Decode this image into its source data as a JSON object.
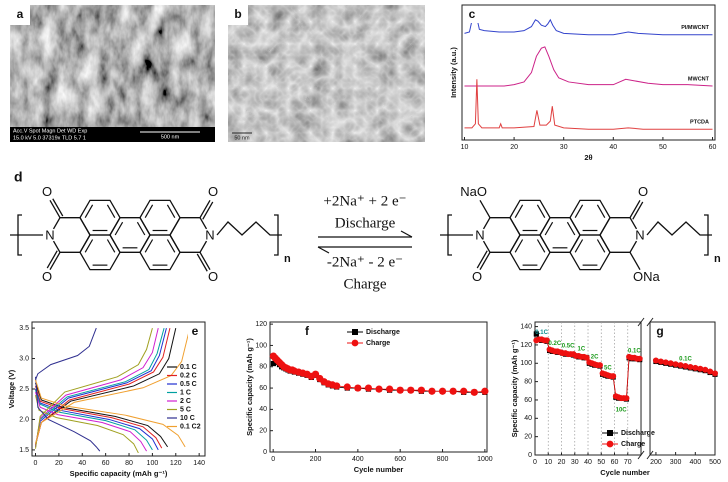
{
  "micrographs": [
    {
      "label": "a",
      "info": [
        "Acc.V  Spot Magn   Det  WD  Exp",
        "15.0 kV 5.0 37319x  TLD 5.7  1"
      ],
      "scale": "500 nm"
    },
    {
      "label": "b",
      "scale": "50 nm"
    }
  ],
  "scheme": {
    "label": "d",
    "left_atoms": [
      "O",
      "N",
      "O",
      "O",
      "N",
      "O"
    ],
    "right_atoms": [
      "NaO",
      "N",
      "O",
      "O",
      "N",
      "ONa"
    ],
    "repeat": "n",
    "forward": "+2Na⁺ + 2 e⁻",
    "forward_label": "Discharge",
    "reverse": "-2Na⁺ - 2 e⁻",
    "reverse_label": "Charge"
  },
  "chart_data": [
    {
      "type": "line",
      "label": "c",
      "xlabel": "2θ",
      "ylabel": "Intensity (a.u.)",
      "xlim": [
        9.5,
        60.5
      ],
      "xticks": [
        10,
        20,
        30,
        40,
        50,
        60
      ],
      "ylim": [
        0,
        100
      ],
      "series": [
        {
          "name": "PI/MWCNT",
          "color": "#3344cc",
          "x": [
            10,
            11,
            11.6,
            12,
            12.4,
            13,
            14,
            17,
            20,
            22,
            23.5,
            24.3,
            24.8,
            25.5,
            26.3,
            26.8,
            27.3,
            27.8,
            28.5,
            30,
            35,
            40,
            43,
            45,
            50,
            55,
            60
          ],
          "values": [
            79,
            80,
            90,
            98,
            92,
            82,
            81,
            80,
            80,
            81,
            84,
            89,
            88,
            85,
            84,
            86,
            89,
            85,
            81,
            79,
            78,
            78,
            80,
            79,
            78,
            78,
            78
          ]
        },
        {
          "name": "MWCNT",
          "color": "#cc2288",
          "x": [
            10,
            12,
            15,
            18,
            20,
            22,
            23.5,
            24.5,
            25.5,
            26.2,
            27,
            28,
            29,
            31,
            35,
            40,
            42.5,
            44,
            47,
            50,
            55,
            60
          ],
          "values": [
            40,
            40,
            40,
            40,
            41,
            43,
            50,
            62,
            68,
            69,
            62,
            52,
            46,
            43,
            41,
            41,
            45,
            44,
            42,
            41,
            41,
            40
          ]
        },
        {
          "name": "PTCDA",
          "color": "#e04040",
          "x": [
            10,
            11.5,
            12.2,
            12.5,
            12.8,
            13.5,
            17,
            17.3,
            17.6,
            20,
            24,
            24.6,
            25.2,
            26.5,
            27.3,
            27.7,
            28.2,
            30,
            35,
            40,
            43,
            46,
            50,
            55,
            60
          ],
          "values": [
            9,
            9,
            12,
            45,
            12,
            9,
            9,
            12,
            9,
            9,
            10,
            22,
            11,
            11,
            14,
            25,
            11,
            9,
            8,
            8,
            9,
            8,
            8,
            8,
            8
          ]
        }
      ]
    },
    {
      "type": "line",
      "label": "e",
      "xlabel": "Specific capacity (mAh g⁻¹)",
      "ylabel": "Voltage (V)",
      "xlim": [
        -3,
        145
      ],
      "xticks": [
        0,
        20,
        40,
        60,
        80,
        100,
        120,
        140
      ],
      "ylim": [
        1.4,
        3.6
      ],
      "yticks": [
        1.5,
        {
          "value": 2,
          "label": "2.0"
        },
        2.5,
        {
          "value": 3,
          "label": "3.0"
        },
        3.5
      ],
      "legend": "center right",
      "series": [
        {
          "name": "0.1 C",
          "color": "#111111",
          "discharge": {
            "x": [
              0,
              5,
              23,
              68,
              96,
              107,
              113
            ],
            "values": [
              2.6,
              2.32,
              2.2,
              2.05,
              1.9,
              1.72,
              1.55
            ]
          },
          "charge": {
            "x": [
              0,
              5,
              30,
              84,
              106,
              114,
              120
            ],
            "values": [
              1.6,
              1.95,
              2.3,
              2.55,
              2.75,
              3.0,
              3.5
            ]
          }
        },
        {
          "name": "0.2 C",
          "color": "#e02020",
          "discharge": {
            "x": [
              0,
              4,
              22,
              65,
              92,
              103,
              108
            ],
            "values": [
              2.55,
              2.3,
              2.18,
              2.03,
              1.88,
              1.7,
              1.53
            ]
          },
          "charge": {
            "x": [
              0,
              5,
              29,
              80,
              101,
              109,
              115
            ],
            "values": [
              1.58,
              1.95,
              2.32,
              2.58,
              2.78,
              3.02,
              3.5
            ]
          }
        },
        {
          "name": "0.5 C",
          "color": "#2030d0",
          "discharge": {
            "x": [
              0,
              4,
              21,
              63,
              89,
              100,
              105
            ],
            "values": [
              2.5,
              2.27,
              2.15,
              2.0,
              1.85,
              1.68,
              1.5
            ]
          },
          "charge": {
            "x": [
              0,
              4,
              28,
              78,
              99,
              106,
              112
            ],
            "values": [
              1.55,
              1.97,
              2.35,
              2.6,
              2.8,
              3.05,
              3.5
            ]
          }
        },
        {
          "name": "1 C",
          "color": "#00a0a0",
          "discharge": {
            "x": [
              0,
              4,
              20,
              60,
              85,
              95,
              100
            ],
            "values": [
              2.48,
              2.25,
              2.12,
              1.98,
              1.83,
              1.66,
              1.5
            ]
          },
          "charge": {
            "x": [
              0,
              4,
              27,
              77,
              97,
              104,
              110
            ],
            "values": [
              1.55,
              2.0,
              2.37,
              2.62,
              2.82,
              3.08,
              3.5
            ]
          }
        },
        {
          "name": "2 C",
          "color": "#d020d0",
          "discharge": {
            "x": [
              0,
              4,
              19,
              57,
              81,
              90,
              95
            ],
            "values": [
              2.45,
              2.2,
              2.08,
              1.95,
              1.8,
              1.64,
              1.48
            ]
          },
          "charge": {
            "x": [
              0,
              4,
              26,
              73,
              92,
              100,
              105
            ],
            "values": [
              1.55,
              2.02,
              2.4,
              2.65,
              2.85,
              3.1,
              3.5
            ]
          }
        },
        {
          "name": "5 C",
          "color": "#a0a020",
          "discharge": {
            "x": [
              0,
              3,
              18,
              53,
              75,
              84,
              88
            ],
            "values": [
              2.4,
              2.15,
              2.03,
              1.9,
              1.75,
              1.6,
              1.45
            ]
          },
          "charge": {
            "x": [
              0,
              4,
              25,
              70,
              88,
              95,
              100
            ],
            "values": [
              1.52,
              2.05,
              2.45,
              2.7,
              2.9,
              3.15,
              3.5
            ]
          }
        },
        {
          "name": "10 C",
          "color": "#303090",
          "discharge": {
            "x": [
              0,
              2,
              11,
              33,
              47,
              52,
              55
            ],
            "values": [
              2.7,
              2.2,
              2.0,
              1.8,
              1.65,
              1.55,
              1.48
            ]
          },
          "charge": {
            "x": [
              0,
              2,
              13,
              36,
              46,
              49,
              52
            ],
            "values": [
              2.65,
              2.75,
              2.9,
              3.05,
              3.2,
              3.35,
              3.5
            ]
          }
        },
        {
          "name": "0.1 C2",
          "color": "#f0a030",
          "discharge": {
            "x": [
              0,
              5,
              26,
              77,
              109,
              122,
              128
            ],
            "values": [
              2.65,
              2.35,
              2.22,
              2.07,
              1.92,
              1.74,
              1.55
            ]
          },
          "charge": {
            "x": [
              0,
              5,
              33,
              92,
              116,
              125,
              132
            ],
            "values": [
              1.6,
              1.95,
              2.28,
              2.52,
              2.72,
              2.95,
              3.5
            ]
          }
        }
      ]
    },
    {
      "type": "scatter",
      "label": "f",
      "xlabel": "Cycle number",
      "ylabel": "Specific capacity (mAh g⁻¹)",
      "xlim": [
        -15,
        1010
      ],
      "xticks": [
        0,
        200,
        400,
        600,
        800,
        1000
      ],
      "ylim": [
        0,
        122
      ],
      "yticks": [
        0,
        20,
        40,
        60,
        80,
        100,
        120
      ],
      "legend": "upper center",
      "x": [
        1,
        10,
        20,
        30,
        40,
        50,
        60,
        70,
        80,
        90,
        100,
        120,
        140,
        160,
        180,
        200,
        220,
        240,
        260,
        280,
        300,
        350,
        400,
        450,
        500,
        550,
        600,
        650,
        700,
        750,
        800,
        850,
        900,
        950,
        1000
      ],
      "series": [
        {
          "name": "Discharge",
          "color": "#000000",
          "marker": "square",
          "values": [
            83,
            85,
            84,
            82,
            80,
            79,
            78,
            77,
            76,
            76,
            75,
            74,
            73,
            72,
            70,
            72,
            68,
            65,
            63,
            62,
            61,
            60,
            60,
            59,
            59,
            58,
            58,
            58,
            57,
            57,
            57,
            57,
            56,
            56,
            56
          ]
        },
        {
          "name": "Charge",
          "color": "#ee1111",
          "marker": "circle",
          "values": [
            90,
            88,
            86,
            84,
            82,
            80,
            79,
            78,
            77,
            77,
            76,
            75,
            74,
            73,
            71,
            73,
            69,
            66,
            64,
            63,
            62,
            61,
            60,
            60,
            59,
            59,
            58,
            58,
            58,
            57,
            57,
            57,
            57,
            56,
            57
          ]
        }
      ]
    },
    {
      "type": "scatter",
      "label": "g",
      "xlabel": "Cycle number",
      "ylabel": "Specific capacity (mAh g⁻¹)",
      "xsegments": [
        [
          0,
          80
        ],
        [
          170,
          500
        ]
      ],
      "xgrid": true,
      "xticks": [
        0,
        10,
        20,
        30,
        40,
        50,
        60,
        70,
        200,
        300,
        400,
        500
      ],
      "ylim": [
        0,
        145
      ],
      "yticks": [
        0,
        20,
        40,
        60,
        80,
        100,
        120,
        140
      ],
      "legend": "lower right",
      "annotations": [
        "0.1C",
        "0.2C",
        "0.5C",
        "1C",
        "2C",
        "5C",
        "10C",
        "0.1C",
        "0.1C"
      ],
      "x": [
        1,
        3,
        5,
        7,
        9,
        11,
        13,
        15,
        17,
        19,
        21,
        23,
        25,
        27,
        29,
        31,
        33,
        35,
        37,
        39,
        41,
        43,
        45,
        47,
        49,
        51,
        53,
        55,
        57,
        59,
        61,
        63,
        65,
        67,
        69,
        71,
        73,
        75,
        77,
        79,
        200,
        225,
        250,
        275,
        300,
        325,
        350,
        375,
        400,
        425,
        450,
        475,
        500
      ],
      "series": [
        {
          "name": "Discharge",
          "color": "#000000",
          "marker": "square",
          "values": [
            132,
            126,
            125,
            125,
            124,
            114,
            113,
            113,
            112,
            112,
            111,
            110,
            110,
            110,
            109,
            108,
            107,
            107,
            106,
            106,
            100,
            99,
            98,
            98,
            97,
            88,
            87,
            86,
            86,
            85,
            63,
            62,
            62,
            62,
            61,
            106,
            105,
            105,
            105,
            104,
            102,
            101,
            100,
            99,
            98,
            97,
            96,
            95,
            94,
            93,
            92,
            90,
            88
          ]
        },
        {
          "name": "Charge",
          "color": "#ee1111",
          "marker": "circle",
          "values": [
            125,
            126,
            126,
            125,
            125,
            115,
            114,
            113,
            113,
            112,
            111,
            111,
            110,
            110,
            110,
            108,
            108,
            107,
            107,
            106,
            101,
            100,
            99,
            98,
            98,
            89,
            88,
            87,
            86,
            86,
            64,
            63,
            62,
            62,
            62,
            107,
            106,
            106,
            105,
            105,
            103,
            102,
            101,
            100,
            99,
            98,
            97,
            96,
            95,
            94,
            93,
            91,
            89
          ]
        }
      ]
    }
  ]
}
